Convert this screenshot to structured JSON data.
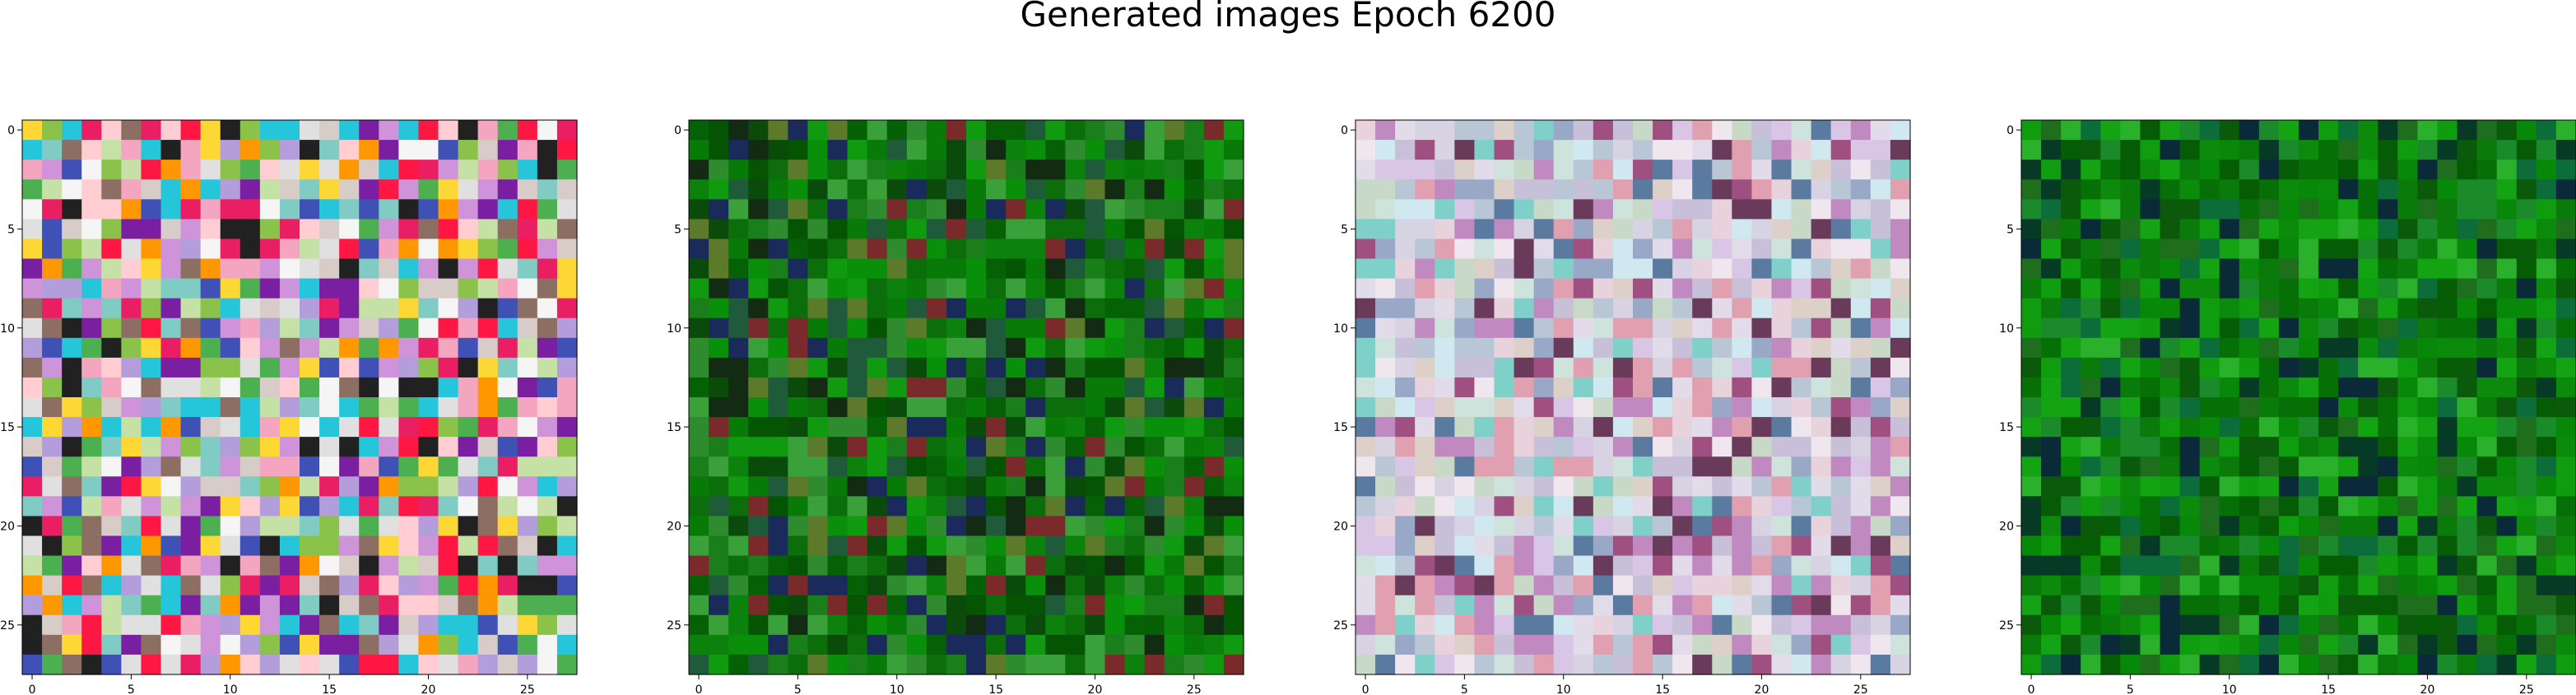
{
  "figure": {
    "title": "Generated images Epoch 6200"
  },
  "chart_data": [
    {
      "type": "heatmap",
      "rows": 28,
      "cols": 28,
      "xticks": [
        0,
        5,
        10,
        15,
        20,
        25
      ],
      "yticks": [
        0,
        5,
        10,
        15,
        20,
        25
      ],
      "xlim": [
        -0.5,
        27.5
      ],
      "ylim": [
        27.5,
        -0.5
      ],
      "palette": [
        "#f4a6c0",
        "#e91e63",
        "#ff1744",
        "#ff9800",
        "#fdd835",
        "#8bc34a",
        "#4caf50",
        "#26c6da",
        "#3f51b5",
        "#7b1fa2",
        "#e0e0e0",
        "#f5f5f5",
        "#d7ccc8",
        "#ce93d8",
        "#ffcdd2",
        "#212121",
        "#8d6e63",
        "#b39ddb",
        "#80cbc4",
        "#c5e1a5"
      ],
      "seed": 11
    },
    {
      "type": "heatmap",
      "rows": 28,
      "cols": 28,
      "xticks": [
        0,
        5,
        10,
        15,
        20,
        25
      ],
      "yticks": [
        0,
        5,
        10,
        15,
        20,
        25
      ],
      "xlim": [
        -0.5,
        27.5
      ],
      "ylim": [
        27.5,
        -0.5
      ],
      "palette": [
        "#0b6e0b",
        "#087a08",
        "#0a8f0a",
        "#066006",
        "#0f9a0f",
        "#045404",
        "#1a7f1a",
        "#2e8b2e",
        "#0a4a0a",
        "#122b12",
        "#1f5a3a",
        "#5c7a2a",
        "#7a2a2a",
        "#1a2a5a",
        "#3aa03a",
        "#0c820c"
      ],
      "seed": 23
    },
    {
      "type": "heatmap",
      "rows": 28,
      "cols": 28,
      "xticks": [
        0,
        5,
        10,
        15,
        20,
        25
      ],
      "yticks": [
        0,
        5,
        10,
        15,
        20,
        25
      ],
      "xlim": [
        -0.5,
        27.5
      ],
      "ylim": [
        27.5,
        -0.5
      ],
      "palette": [
        "#d7d3e3",
        "#c7c0d8",
        "#e2dcea",
        "#cfe3dd",
        "#e8d2dc",
        "#b9c6d6",
        "#d9c5e6",
        "#f0e6ee",
        "#c9d9c8",
        "#ddd0c8",
        "#9aa8c8",
        "#c08ac0",
        "#7ed0c8",
        "#a05080",
        "#6a3a5a",
        "#e0a0b0",
        "#5a7aa0",
        "#d0e8f0"
      ],
      "seed": 37
    },
    {
      "type": "heatmap",
      "rows": 28,
      "cols": 28,
      "xticks": [
        0,
        5,
        10,
        15,
        20,
        25
      ],
      "yticks": [
        0,
        5,
        10,
        15,
        20,
        25
      ],
      "xlim": [
        -0.5,
        27.5
      ],
      "ylim": [
        27.5,
        -0.5
      ],
      "palette": [
        "#0a7a0a",
        "#0c8a0c",
        "#067006",
        "#0f9c0f",
        "#055c05",
        "#13a313",
        "#1a8a2a",
        "#0d6d3a",
        "#063a26",
        "#0a2a3a",
        "#2ab02a",
        "#088808",
        "#1e6e1e",
        "#0b5a0b"
      ],
      "seed": 51
    }
  ]
}
